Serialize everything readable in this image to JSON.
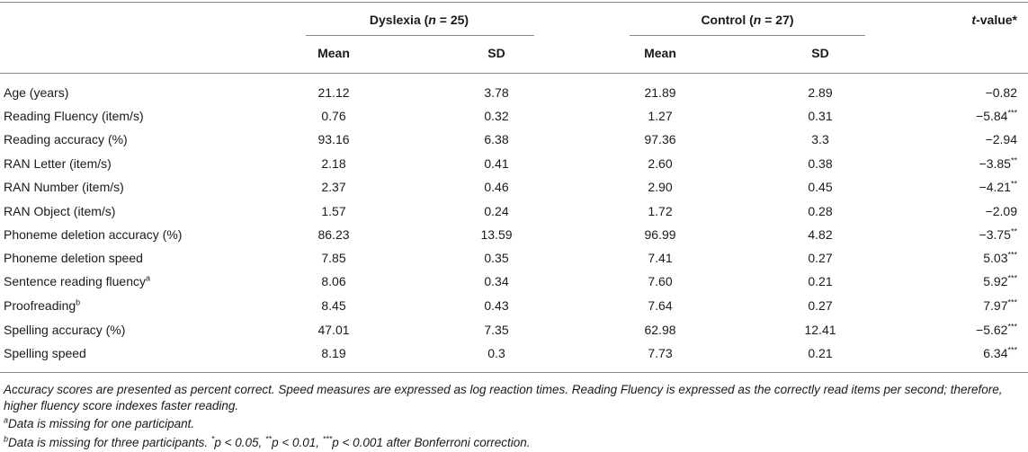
{
  "header": {
    "dyslexia_group": {
      "name": "Dyslexia",
      "n_label": "n",
      "n_value": "25"
    },
    "control_group": {
      "name": "Control",
      "n_label": "n",
      "n_value": "27"
    },
    "tvalue": {
      "t": "t",
      "rest": "-value*"
    },
    "mean": "Mean",
    "sd": "SD"
  },
  "rows": [
    {
      "label": "Age (years)",
      "sup": "",
      "dys_mean": "21.12",
      "dys_sd": "3.78",
      "ctl_mean": "21.89",
      "ctl_sd": "2.89",
      "t": "−0.82",
      "sig": ""
    },
    {
      "label": "Reading Fluency (item/s)",
      "sup": "",
      "dys_mean": "0.76",
      "dys_sd": "0.32",
      "ctl_mean": "1.27",
      "ctl_sd": "0.31",
      "t": "−5.84",
      "sig": "***"
    },
    {
      "label": "Reading accuracy (%)",
      "sup": "",
      "dys_mean": "93.16",
      "dys_sd": "6.38",
      "ctl_mean": "97.36",
      "ctl_sd": "3.3",
      "t": "−2.94",
      "sig": ""
    },
    {
      "label": "RAN Letter (item/s)",
      "sup": "",
      "dys_mean": "2.18",
      "dys_sd": "0.41",
      "ctl_mean": "2.60",
      "ctl_sd": "0.38",
      "t": "−3.85",
      "sig": "**"
    },
    {
      "label": "RAN Number (item/s)",
      "sup": "",
      "dys_mean": "2.37",
      "dys_sd": "0.46",
      "ctl_mean": "2.90",
      "ctl_sd": "0.45",
      "t": "−4.21",
      "sig": "**"
    },
    {
      "label": "RAN Object (item/s)",
      "sup": "",
      "dys_mean": "1.57",
      "dys_sd": "0.24",
      "ctl_mean": "1.72",
      "ctl_sd": "0.28",
      "t": "−2.09",
      "sig": ""
    },
    {
      "label": "Phoneme deletion accuracy (%)",
      "sup": "",
      "dys_mean": "86.23",
      "dys_sd": "13.59",
      "ctl_mean": "96.99",
      "ctl_sd": "4.82",
      "t": "−3.75",
      "sig": "**"
    },
    {
      "label": "Phoneme deletion speed",
      "sup": "",
      "dys_mean": "7.85",
      "dys_sd": "0.35",
      "ctl_mean": "7.41",
      "ctl_sd": "0.27",
      "t": "5.03",
      "sig": "***"
    },
    {
      "label": "Sentence reading fluency",
      "sup": "a",
      "dys_mean": "8.06",
      "dys_sd": "0.34",
      "ctl_mean": "7.60",
      "ctl_sd": "0.21",
      "t": "5.92",
      "sig": "***"
    },
    {
      "label": "Proofreading",
      "sup": "b",
      "dys_mean": "8.45",
      "dys_sd": "0.43",
      "ctl_mean": "7.64",
      "ctl_sd": "0.27",
      "t": "7.97",
      "sig": "***"
    },
    {
      "label": "Spelling accuracy (%)",
      "sup": "",
      "dys_mean": "47.01",
      "dys_sd": "7.35",
      "ctl_mean": "62.98",
      "ctl_sd": "12.41",
      "t": "−5.62",
      "sig": "***"
    },
    {
      "label": "Spelling speed",
      "sup": "",
      "dys_mean": "8.19",
      "dys_sd": "0.3",
      "ctl_mean": "7.73",
      "ctl_sd": "0.21",
      "t": "6.34",
      "sig": "***"
    }
  ],
  "notes": {
    "line1": "Accuracy scores are presented as percent correct. Speed measures are expressed as log reaction times. Reading Fluency is expressed as the correctly read items per second; therefore,",
    "line2": "higher fluency score indexes faster reading.",
    "a": {
      "sup": "a",
      "text": "Data is missing for one participant."
    },
    "b": {
      "sup": "b",
      "text": "Data is missing for three participants. ",
      "p1_sup": "*",
      "p1": "p < 0.05, ",
      "p2_sup": "**",
      "p2": "p < 0.01, ",
      "p3_sup": "***",
      "p3": "p < 0.001 after Bonferroni correction."
    }
  }
}
